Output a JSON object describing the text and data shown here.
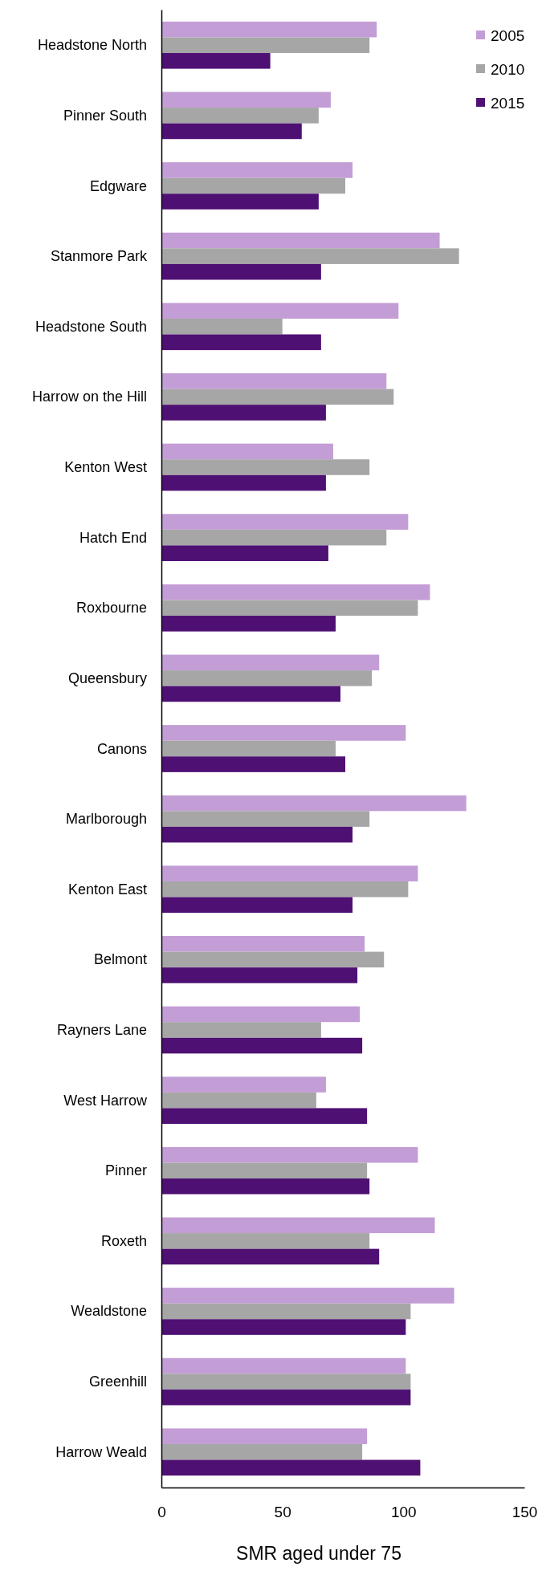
{
  "chart_data": {
    "type": "bar",
    "orientation": "horizontal",
    "xlabel": "SMR aged under 75",
    "categories": [
      "Headstone North",
      "Pinner South",
      "Edgware",
      "Stanmore Park",
      "Headstone South",
      "Harrow on the Hill",
      "Kenton West",
      "Hatch End",
      "Roxbourne",
      "Queensbury",
      "Canons",
      "Marlborough",
      "Kenton East",
      "Belmont",
      "Rayners Lane",
      "West Harrow",
      "Pinner",
      "Roxeth",
      "Wealdstone",
      "Greenhill",
      "Harrow Weald"
    ],
    "series": [
      {
        "name": "2005",
        "color": "#c39dd6",
        "values": [
          89,
          70,
          79,
          115,
          98,
          93,
          71,
          102,
          111,
          90,
          101,
          126,
          106,
          84,
          82,
          68,
          106,
          113,
          121,
          101,
          85
        ]
      },
      {
        "name": "2010",
        "color": "#a6a6a6",
        "values": [
          86,
          65,
          76,
          123,
          50,
          96,
          86,
          93,
          106,
          87,
          72,
          86,
          102,
          92,
          66,
          64,
          85,
          86,
          103,
          103,
          83
        ]
      },
      {
        "name": "2015",
        "color": "#4f1074",
        "values": [
          45,
          58,
          65,
          66,
          66,
          68,
          68,
          69,
          72,
          74,
          76,
          79,
          79,
          81,
          83,
          85,
          86,
          90,
          101,
          103,
          107
        ]
      }
    ],
    "xlim": [
      0,
      150
    ],
    "xticks": [
      0,
      50,
      100,
      150
    ],
    "grid": false,
    "legend": "top right"
  }
}
